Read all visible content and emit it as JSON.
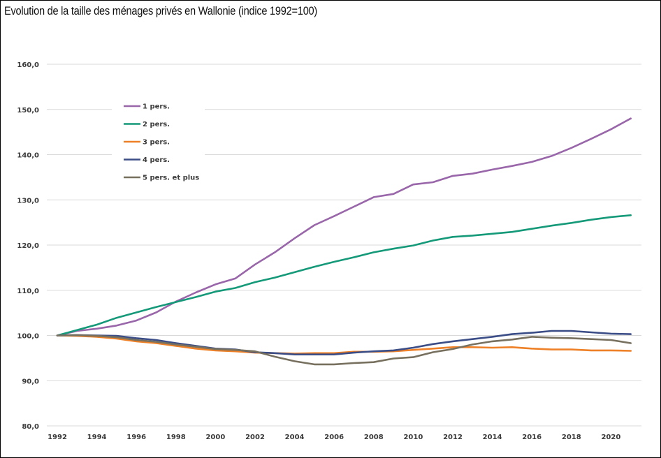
{
  "title": "Evolution de la taille des ménages privés en Wallonie (indice 1992=100)",
  "chart_data": {
    "type": "line",
    "title": "Evolution de la taille des ménages privés en Wallonie (indice 1992=100)",
    "xlabel": "",
    "ylabel": "",
    "x": [
      1992,
      1993,
      1994,
      1995,
      1996,
      1997,
      1998,
      1999,
      2000,
      2001,
      2002,
      2003,
      2004,
      2005,
      2006,
      2007,
      2008,
      2009,
      2010,
      2011,
      2012,
      2013,
      2014,
      2015,
      2016,
      2017,
      2018,
      2019,
      2020,
      2021
    ],
    "xticks": [
      "1992",
      "1994",
      "1996",
      "1998",
      "2000",
      "2002",
      "2004",
      "2006",
      "2008",
      "2010",
      "2012",
      "2014",
      "2016",
      "2018",
      "2020"
    ],
    "ylim": [
      80,
      160
    ],
    "yticks": [
      "80,0",
      "90,0",
      "100,0",
      "110,0",
      "120,0",
      "130,0",
      "140,0",
      "150,0",
      "160,0"
    ],
    "grid": "horizontal",
    "legend_position": "top-left",
    "series": [
      {
        "name": "1 pers.",
        "color": "#9966aa",
        "values": [
          100,
          101,
          101.5,
          102.2,
          103.3,
          105.1,
          107.5,
          109.5,
          111.3,
          112.6,
          115.7,
          118.4,
          121.5,
          124.4,
          126.4,
          128.5,
          130.6,
          131.3,
          133.4,
          133.9,
          135.3,
          135.8,
          136.7,
          137.5,
          138.4,
          139.7,
          141.5,
          143.5,
          145.6,
          148.0
        ]
      },
      {
        "name": "2 pers.",
        "color": "#149979",
        "values": [
          100,
          101.2,
          102.4,
          103.9,
          105.1,
          106.3,
          107.4,
          108.5,
          109.7,
          110.5,
          111.8,
          112.8,
          114.0,
          115.2,
          116.3,
          117.3,
          118.4,
          119.2,
          119.9,
          121.0,
          121.8,
          122.1,
          122.5,
          122.9,
          123.6,
          124.3,
          124.9,
          125.6,
          126.2,
          126.6
        ]
      },
      {
        "name": "3 pers.",
        "color": "#ee8027",
        "values": [
          100,
          99.9,
          99.7,
          99.3,
          98.7,
          98.3,
          97.7,
          97.1,
          96.7,
          96.5,
          96.2,
          96.1,
          96.0,
          96.1,
          96.1,
          96.4,
          96.4,
          96.5,
          96.8,
          97.1,
          97.4,
          97.4,
          97.3,
          97.4,
          97.1,
          96.9,
          96.9,
          96.7,
          96.7,
          96.6
        ]
      },
      {
        "name": "4 pers.",
        "color": "#3b4d86",
        "values": [
          100,
          100.1,
          100.0,
          99.9,
          99.4,
          99.0,
          98.3,
          97.7,
          97.1,
          96.9,
          96.3,
          96.1,
          95.8,
          95.8,
          95.8,
          96.2,
          96.5,
          96.7,
          97.3,
          98.1,
          98.7,
          99.2,
          99.7,
          100.3,
          100.6,
          101.0,
          101.0,
          100.7,
          100.4,
          100.3
        ]
      },
      {
        "name": "5 pers. et plus",
        "color": "#77705f",
        "values": [
          100,
          100.1,
          99.9,
          99.6,
          99.0,
          98.6,
          98.0,
          97.5,
          97.0,
          96.8,
          96.5,
          95.3,
          94.3,
          93.6,
          93.6,
          93.9,
          94.1,
          94.9,
          95.2,
          96.3,
          97.0,
          98.0,
          98.7,
          99.1,
          99.7,
          99.5,
          99.4,
          99.2,
          99.0,
          98.3
        ]
      }
    ]
  }
}
